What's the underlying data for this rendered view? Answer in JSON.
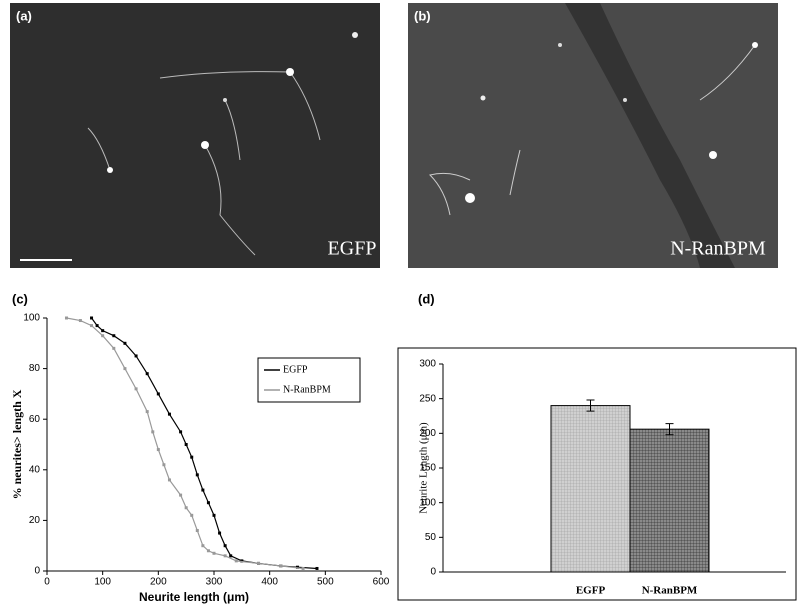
{
  "panels": [
    "(a)",
    "(b)",
    "(c)",
    "(d)"
  ],
  "images": [
    {
      "label": "EGFP"
    },
    {
      "label": "N-RanBPM"
    }
  ],
  "chart_data": [
    {
      "type": "line",
      "xlabel": "Neurite length (μm)",
      "ylabel": "% neurites> length X",
      "xlim": [
        0,
        600
      ],
      "xticks": [
        0,
        100,
        200,
        300,
        400,
        500,
        600
      ],
      "ylim": [
        0,
        100
      ],
      "yticks": [
        0,
        20,
        40,
        60,
        80,
        100
      ],
      "legend": "upper right",
      "grid": false,
      "series": [
        {
          "name": "EGFP",
          "color": "#000000",
          "x": [
            80,
            90,
            100,
            120,
            140,
            160,
            180,
            200,
            220,
            240,
            250,
            260,
            270,
            280,
            290,
            300,
            310,
            320,
            330,
            350,
            380,
            420,
            450,
            485
          ],
          "values": [
            100,
            97,
            95,
            93,
            90,
            85,
            78,
            70,
            62,
            55,
            50,
            45,
            38,
            32,
            27,
            22,
            15,
            10,
            6,
            4,
            3,
            2,
            1.5,
            1
          ]
        },
        {
          "name": "N-RanBPM",
          "color": "#999999",
          "x": [
            35,
            60,
            80,
            100,
            120,
            140,
            160,
            180,
            190,
            200,
            210,
            220,
            240,
            250,
            260,
            270,
            280,
            290,
            300,
            320,
            340,
            380,
            420,
            460
          ],
          "values": [
            100,
            99,
            97,
            93,
            88,
            80,
            72,
            63,
            55,
            48,
            42,
            36,
            30,
            25,
            22,
            16,
            10,
            8,
            7,
            6,
            4,
            3,
            2,
            1
          ]
        }
      ]
    },
    {
      "type": "bar",
      "ylabel": "Neurite Length (μm)",
      "categories": [
        "EGFP",
        "N-RanBPM"
      ],
      "values": [
        240,
        206
      ],
      "errors": [
        8,
        8
      ],
      "colors": [
        "#c4c4c4",
        "#7a7a7a"
      ],
      "ylim": [
        0,
        300
      ],
      "yticks": [
        0,
        50,
        100,
        150,
        200,
        250,
        300
      ],
      "grid": false
    }
  ]
}
